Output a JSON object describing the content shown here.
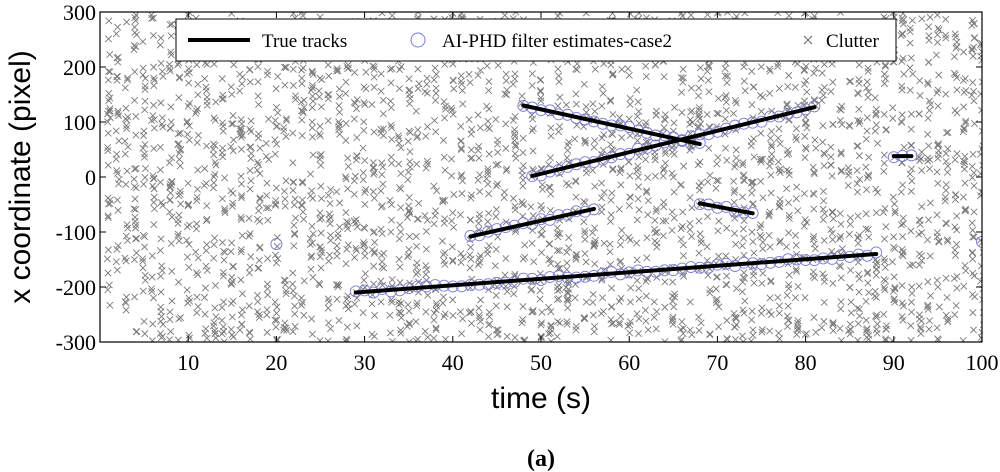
{
  "chart_data": {
    "type": "scatter",
    "title": "",
    "xlabel": "time (s)",
    "ylabel": "x coordinate (pixel)",
    "xlim": [
      0,
      100
    ],
    "ylim": [
      -300,
      300
    ],
    "xticks": [
      10,
      20,
      30,
      40,
      50,
      60,
      70,
      80,
      90,
      100
    ],
    "yticks": [
      -300,
      -200,
      -100,
      0,
      100,
      200,
      300
    ],
    "grid": false,
    "legend_placement": "top",
    "caption": "(a)",
    "series": [
      {
        "name": "True tracks",
        "kind": "line",
        "color": "#000000",
        "tracks": [
          [
            [
              29,
              -210
            ],
            [
              88,
              -140
            ]
          ],
          [
            [
              42,
              -108
            ],
            [
              56,
              -58
            ]
          ],
          [
            [
              48,
              130
            ],
            [
              68,
              60
            ]
          ],
          [
            [
              49,
              2
            ],
            [
              81,
              127
            ]
          ],
          [
            [
              68,
              -48
            ],
            [
              74,
              -66
            ]
          ],
          [
            [
              90,
              38
            ],
            [
              92,
              38
            ]
          ]
        ]
      },
      {
        "name": "AI-PHD filter estimates-case2",
        "kind": "circle-markers",
        "color": "#7b7bd8",
        "tracks": [
          [
            [
              29,
              -210
            ],
            [
              88,
              -140
            ]
          ],
          [
            [
              42,
              -108
            ],
            [
              56,
              -58
            ]
          ],
          [
            [
              48,
              130
            ],
            [
              68,
              60
            ]
          ],
          [
            [
              49,
              2
            ],
            [
              81,
              127
            ]
          ],
          [
            [
              68,
              -48
            ],
            [
              74,
              -66
            ]
          ],
          [
            [
              90,
              38
            ],
            [
              92,
              38
            ]
          ]
        ],
        "isolated_points": [
          [
            20,
            -122
          ],
          [
            100,
            -118
          ]
        ]
      },
      {
        "name": "Clutter",
        "kind": "x-markers",
        "color": "#808080",
        "description_count_per_second": 30,
        "x_range": [
          1,
          100
        ],
        "y_range": [
          -300,
          300
        ]
      }
    ]
  }
}
